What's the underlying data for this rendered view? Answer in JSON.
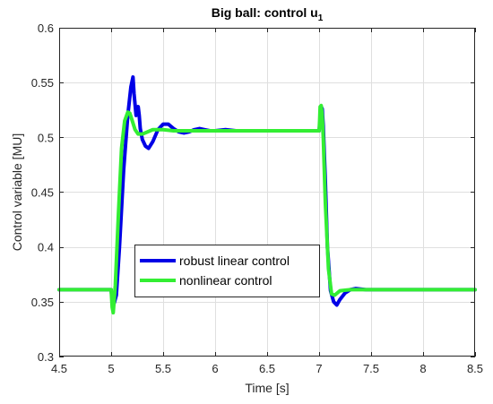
{
  "chart_data": {
    "type": "line",
    "title": "Big ball: control u",
    "title_subscript": "1",
    "xlabel": "Time [s]",
    "ylabel": "Control variable [MU]",
    "xlim": [
      4.5,
      8.5
    ],
    "ylim": [
      0.3,
      0.6
    ],
    "x_ticks": [
      4.5,
      5,
      5.5,
      6,
      6.5,
      7,
      7.5,
      8,
      8.5
    ],
    "x_tick_labels": [
      "4.5",
      "5",
      "5.5",
      "6",
      "6.5",
      "7",
      "7.5",
      "8",
      "8.5"
    ],
    "y_ticks": [
      0.3,
      0.35,
      0.4,
      0.45,
      0.5,
      0.55,
      0.6
    ],
    "y_tick_labels": [
      "0.3",
      "0.35",
      "0.4",
      "0.45",
      "0.5",
      "0.55",
      "0.6"
    ],
    "grid": true,
    "legend_position": "bottom-left",
    "series": [
      {
        "name": "robust linear control",
        "color": "#0000e6",
        "x": [
          4.5,
          5.0,
          5.01,
          5.03,
          5.05,
          5.08,
          5.12,
          5.16,
          5.19,
          5.21,
          5.22,
          5.23,
          5.24,
          5.26,
          5.27,
          5.28,
          5.3,
          5.33,
          5.36,
          5.4,
          5.45,
          5.5,
          5.55,
          5.6,
          5.65,
          5.7,
          5.75,
          5.8,
          5.85,
          5.9,
          5.95,
          6.0,
          6.1,
          6.2,
          6.4,
          6.6,
          6.8,
          7.0,
          7.01,
          7.02,
          7.03,
          7.04,
          7.06,
          7.08,
          7.11,
          7.14,
          7.17,
          7.2,
          7.25,
          7.3,
          7.35,
          7.45,
          7.6,
          8.0,
          8.5
        ],
        "y": [
          0.361,
          0.361,
          0.352,
          0.349,
          0.356,
          0.4,
          0.47,
          0.52,
          0.546,
          0.555,
          0.54,
          0.53,
          0.52,
          0.528,
          0.52,
          0.508,
          0.498,
          0.492,
          0.49,
          0.496,
          0.507,
          0.512,
          0.512,
          0.508,
          0.505,
          0.504,
          0.505,
          0.507,
          0.508,
          0.507,
          0.506,
          0.506,
          0.507,
          0.506,
          0.506,
          0.506,
          0.506,
          0.506,
          0.515,
          0.528,
          0.526,
          0.51,
          0.46,
          0.4,
          0.36,
          0.35,
          0.347,
          0.352,
          0.358,
          0.361,
          0.362,
          0.361,
          0.361,
          0.361,
          0.361
        ]
      },
      {
        "name": "nonlinear control",
        "color": "#33ee33",
        "x": [
          4.5,
          5.0,
          5.01,
          5.02,
          5.04,
          5.07,
          5.1,
          5.13,
          5.16,
          5.18,
          5.2,
          5.23,
          5.26,
          5.3,
          5.35,
          5.4,
          5.5,
          5.6,
          5.8,
          6.0,
          6.5,
          7.0,
          7.005,
          7.01,
          7.02,
          7.03,
          7.04,
          7.06,
          7.09,
          7.12,
          7.15,
          7.2,
          7.3,
          7.5,
          8.0,
          8.5
        ],
        "y": [
          0.361,
          0.361,
          0.345,
          0.34,
          0.365,
          0.43,
          0.49,
          0.515,
          0.523,
          0.522,
          0.516,
          0.507,
          0.503,
          0.503,
          0.505,
          0.507,
          0.507,
          0.506,
          0.506,
          0.506,
          0.506,
          0.506,
          0.515,
          0.528,
          0.529,
          0.52,
          0.5,
          0.44,
          0.38,
          0.357,
          0.356,
          0.36,
          0.361,
          0.361,
          0.361,
          0.361
        ]
      }
    ]
  }
}
